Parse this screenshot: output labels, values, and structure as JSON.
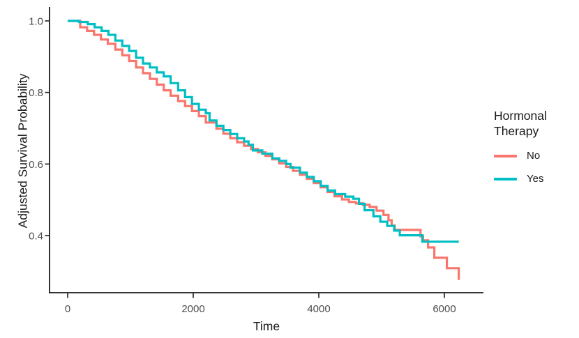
{
  "axes": {
    "x_title": "Time",
    "y_title": "Adjusted Survival Probability"
  },
  "legend": {
    "title": "Hormonal\nTherapy",
    "items": [
      {
        "label": "No",
        "color": "#F8766D"
      },
      {
        "label": "Yes",
        "color": "#00BFC4"
      }
    ]
  },
  "colors": {
    "axis_line": "#1a1a1a",
    "tick_mark": "#333333",
    "tick_text": "#4d4d4d",
    "background": "#ffffff"
  },
  "chart_data": {
    "type": "line",
    "subtype": "kaplan-meier-step",
    "title": "",
    "xlabel": "Time",
    "ylabel": "Adjusted Survival Probability",
    "xlim": [
      0,
      6600
    ],
    "ylim": [
      0.25,
      1.03
    ],
    "x_ticks": [
      0,
      2000,
      4000,
      6000
    ],
    "y_ticks": [
      1.0,
      0.8,
      0.6,
      0.4
    ],
    "grid": false,
    "step": "after",
    "legend_title": "Hormonal Therapy",
    "legend_position": "right",
    "series": [
      {
        "name": "No",
        "color": "#F8766D",
        "points": [
          [
            0,
            1.0
          ],
          [
            200,
            0.982
          ],
          [
            310,
            0.972
          ],
          [
            420,
            0.961
          ],
          [
            530,
            0.948
          ],
          [
            640,
            0.936
          ],
          [
            760,
            0.92
          ],
          [
            870,
            0.904
          ],
          [
            980,
            0.888
          ],
          [
            1090,
            0.87
          ],
          [
            1200,
            0.854
          ],
          [
            1310,
            0.838
          ],
          [
            1420,
            0.822
          ],
          [
            1530,
            0.806
          ],
          [
            1640,
            0.791
          ],
          [
            1760,
            0.776
          ],
          [
            1870,
            0.762
          ],
          [
            1980,
            0.748
          ],
          [
            2090,
            0.734
          ],
          [
            2200,
            0.716
          ],
          [
            2370,
            0.699
          ],
          [
            2480,
            0.685
          ],
          [
            2590,
            0.672
          ],
          [
            2700,
            0.661
          ],
          [
            2810,
            0.651
          ],
          [
            2920,
            0.642
          ],
          [
            3030,
            0.633
          ],
          [
            3150,
            0.623
          ],
          [
            3260,
            0.613
          ],
          [
            3370,
            0.602
          ],
          [
            3480,
            0.592
          ],
          [
            3590,
            0.581
          ],
          [
            3700,
            0.57
          ],
          [
            3810,
            0.559
          ],
          [
            3920,
            0.547
          ],
          [
            4030,
            0.535
          ],
          [
            4140,
            0.522
          ],
          [
            4250,
            0.51
          ],
          [
            4370,
            0.501
          ],
          [
            4480,
            0.494
          ],
          [
            4590,
            0.49
          ],
          [
            4700,
            0.486
          ],
          [
            4810,
            0.48
          ],
          [
            4920,
            0.47
          ],
          [
            5030,
            0.458
          ],
          [
            5110,
            0.443
          ],
          [
            5160,
            0.428
          ],
          [
            5210,
            0.416
          ],
          [
            5620,
            0.398
          ],
          [
            5660,
            0.387
          ],
          [
            5740,
            0.367
          ],
          [
            5840,
            0.338
          ],
          [
            6040,
            0.309
          ],
          [
            6230,
            0.276
          ]
        ]
      },
      {
        "name": "Yes",
        "color": "#00BFC4",
        "points": [
          [
            0,
            1.0
          ],
          [
            180,
            0.997
          ],
          [
            320,
            0.991
          ],
          [
            430,
            0.982
          ],
          [
            540,
            0.972
          ],
          [
            650,
            0.961
          ],
          [
            760,
            0.945
          ],
          [
            870,
            0.93
          ],
          [
            980,
            0.916
          ],
          [
            1090,
            0.897
          ],
          [
            1200,
            0.881
          ],
          [
            1310,
            0.87
          ],
          [
            1420,
            0.856
          ],
          [
            1530,
            0.845
          ],
          [
            1640,
            0.826
          ],
          [
            1760,
            0.806
          ],
          [
            1870,
            0.787
          ],
          [
            1980,
            0.768
          ],
          [
            2090,
            0.752
          ],
          [
            2200,
            0.742
          ],
          [
            2260,
            0.722
          ],
          [
            2370,
            0.707
          ],
          [
            2480,
            0.695
          ],
          [
            2590,
            0.684
          ],
          [
            2700,
            0.672
          ],
          [
            2810,
            0.663
          ],
          [
            2880,
            0.654
          ],
          [
            2950,
            0.638
          ],
          [
            3100,
            0.629
          ],
          [
            3260,
            0.616
          ],
          [
            3370,
            0.609
          ],
          [
            3480,
            0.6
          ],
          [
            3550,
            0.59
          ],
          [
            3700,
            0.576
          ],
          [
            3810,
            0.564
          ],
          [
            3920,
            0.552
          ],
          [
            4030,
            0.539
          ],
          [
            4140,
            0.526
          ],
          [
            4260,
            0.516
          ],
          [
            4420,
            0.509
          ],
          [
            4550,
            0.503
          ],
          [
            4640,
            0.489
          ],
          [
            4730,
            0.471
          ],
          [
            4870,
            0.454
          ],
          [
            4980,
            0.439
          ],
          [
            5090,
            0.427
          ],
          [
            5200,
            0.414
          ],
          [
            5290,
            0.401
          ],
          [
            5650,
            0.383
          ],
          [
            6230,
            0.383
          ]
        ]
      }
    ]
  }
}
